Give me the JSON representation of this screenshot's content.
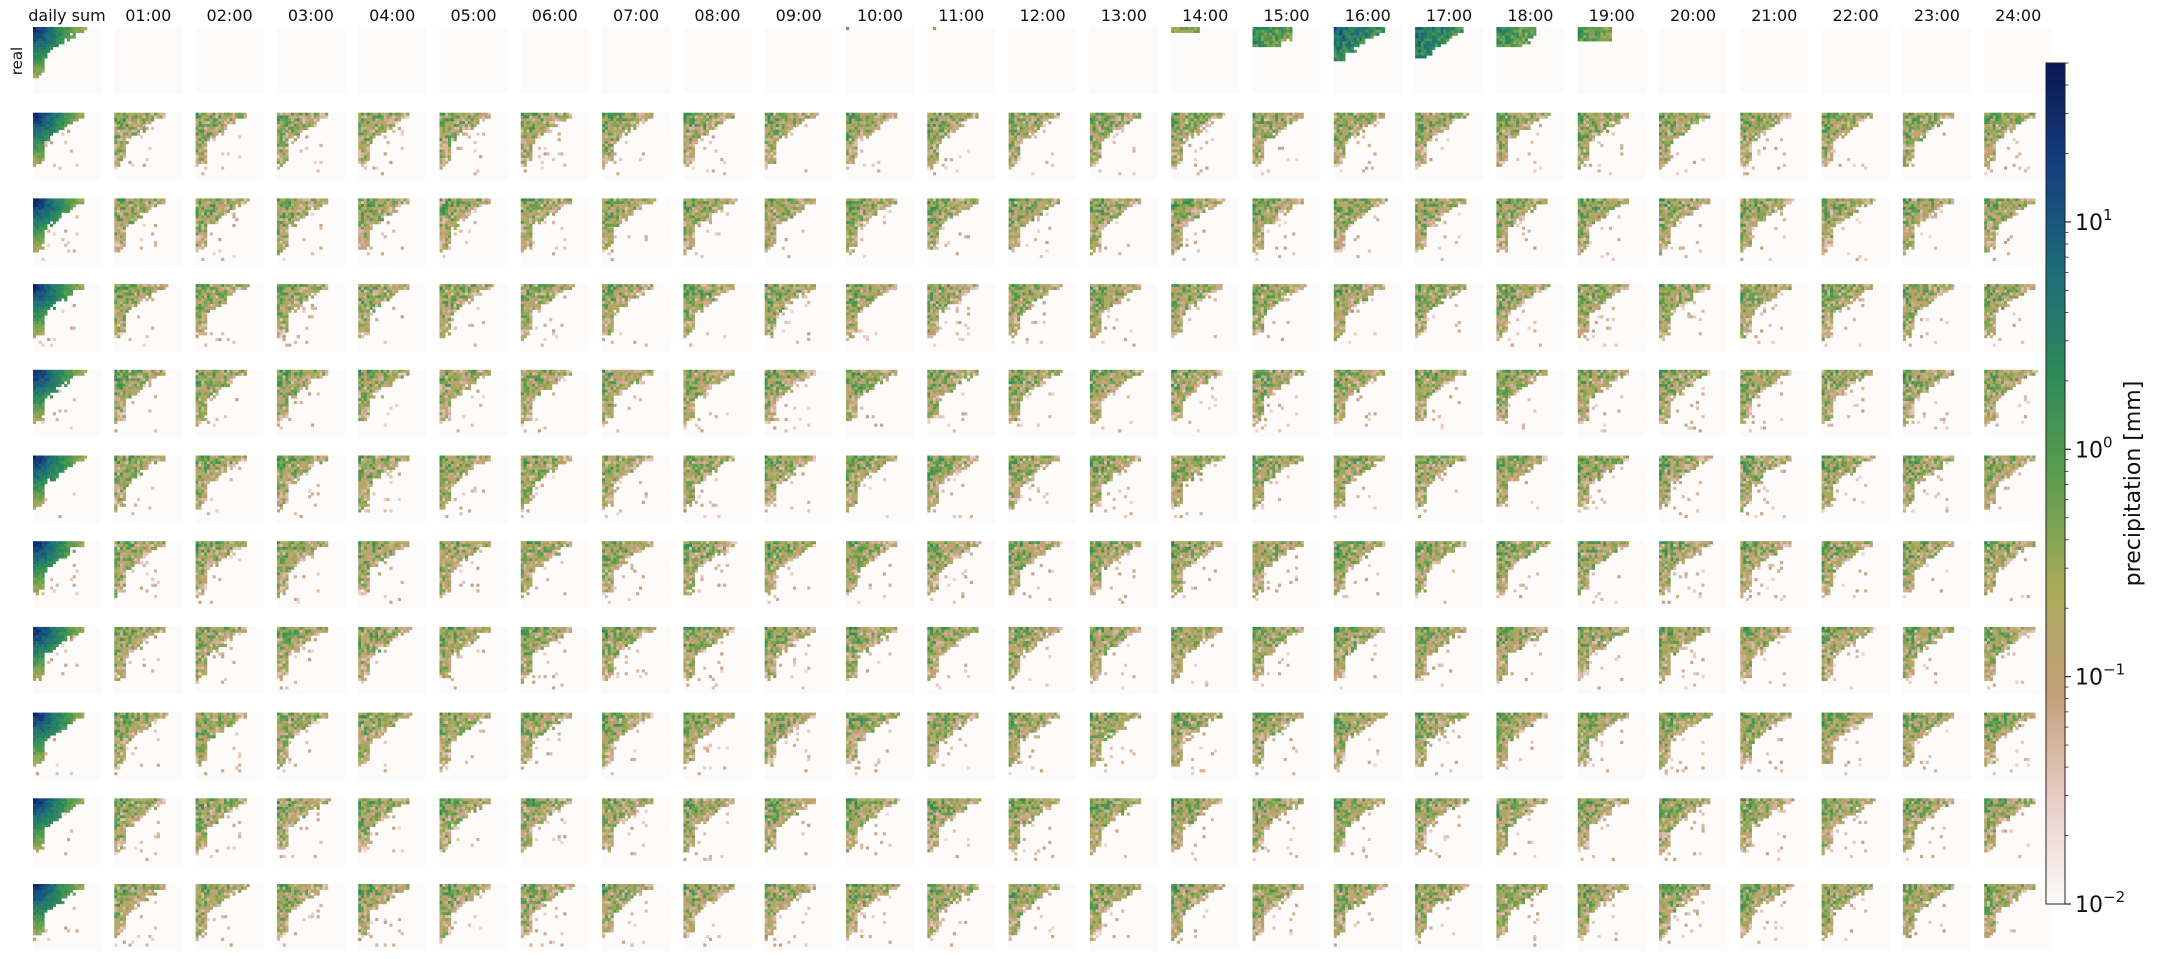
{
  "chart_data": {
    "type": "heatmap",
    "title": "",
    "column_labels": [
      "daily sum",
      "01:00",
      "02:00",
      "03:00",
      "04:00",
      "05:00",
      "06:00",
      "07:00",
      "08:00",
      "09:00",
      "10:00",
      "11:00",
      "12:00",
      "13:00",
      "14:00",
      "15:00",
      "16:00",
      "17:00",
      "18:00",
      "19:00",
      "20:00",
      "21:00",
      "22:00",
      "23:00",
      "24:00"
    ],
    "row_labels": [
      "real",
      "",
      "",
      "",
      "",
      "",
      "",
      "",
      "",
      "",
      ""
    ],
    "grid": {
      "rows": 11,
      "columns": 25
    },
    "real_row_activity": [
      1.0,
      0,
      0,
      0,
      0,
      0,
      0,
      0,
      0,
      0,
      0.03,
      0.03,
      0,
      0,
      0.12,
      0.55,
      0.95,
      0.9,
      0.55,
      0.35,
      0,
      0,
      0,
      0,
      0
    ],
    "colorbar": {
      "label": "precipitation [mm]",
      "scale": "log",
      "range": [
        0.01,
        50
      ],
      "ticks": [
        {
          "value": 0.01,
          "base": "10",
          "exp": "−2"
        },
        {
          "value": 0.1,
          "base": "10",
          "exp": "−1"
        },
        {
          "value": 1,
          "base": "10",
          "exp": "0"
        },
        {
          "value": 10,
          "base": "10",
          "exp": "1"
        }
      ],
      "colormap": "gist_earth_r",
      "color_stops": [
        "#fdfbfa",
        "#e8cdc6",
        "#c3a07a",
        "#a9ab58",
        "#5f9e4e",
        "#2f8b58",
        "#1d6d79",
        "#143f80",
        "#0a1750"
      ]
    }
  }
}
